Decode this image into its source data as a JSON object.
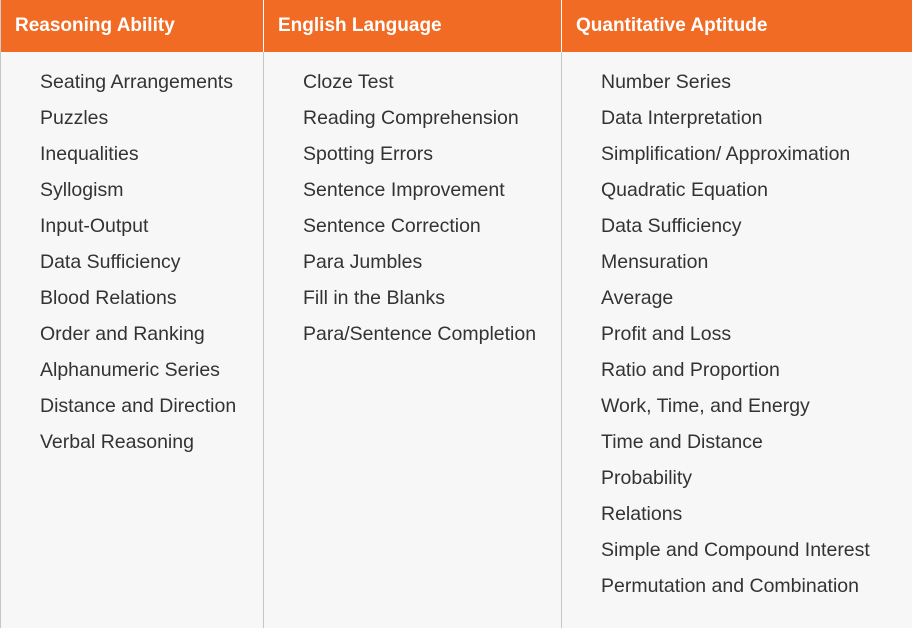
{
  "columns": [
    {
      "heading": "Reasoning Ability",
      "topics": [
        "Seating Arrangements",
        "Puzzles",
        "Inequalities",
        "Syllogism",
        "Input-Output",
        "Data Sufficiency",
        "Blood Relations",
        "Order and Ranking",
        "Alphanumeric Series",
        "Distance and Direction",
        "Verbal Reasoning"
      ]
    },
    {
      "heading": "English Language",
      "topics": [
        "Cloze Test",
        "Reading Comprehension",
        "Spotting Errors",
        "Sentence Improvement",
        "Sentence Correction",
        "Para Jumbles",
        "Fill in the Blanks",
        "Para/Sentence Completion"
      ]
    },
    {
      "heading": "Quantitative Aptitude",
      "topics": [
        "Number Series",
        "Data Interpretation",
        "Simplification/ Approximation",
        "Quadratic Equation",
        "Data Sufficiency",
        "Mensuration",
        "Average",
        "Profit and Loss",
        "Ratio and Proportion",
        "Work, Time, and Energy",
        "Time and Distance",
        "Probability",
        "Relations",
        "Simple and Compound Interest",
        "Permutation and Combination"
      ]
    }
  ],
  "colors": {
    "header_bg": "#f26b24",
    "header_text": "#ffffff",
    "body_bg": "#f7f7f7",
    "body_text": "#333333"
  }
}
